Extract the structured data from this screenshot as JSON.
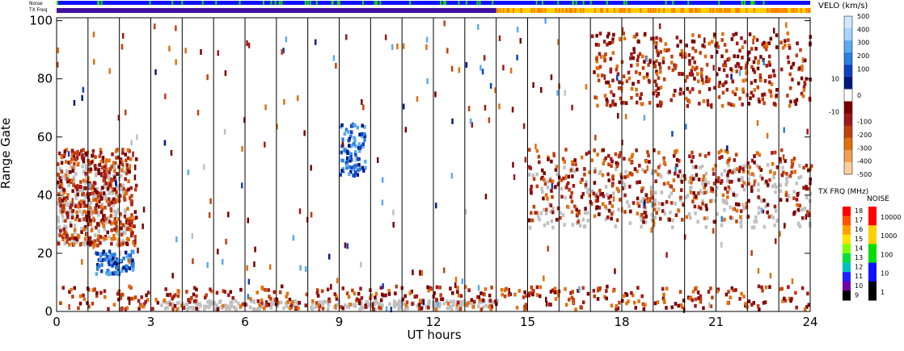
{
  "chart_data": {
    "type": "heatmap",
    "xlabel": "UT hours",
    "ylabel": "Range Gate",
    "xlim": [
      0,
      24
    ],
    "ylim": [
      0,
      101
    ],
    "xticks": [
      "0",
      "3",
      "6",
      "9",
      "12",
      "15",
      "18",
      "21",
      "24"
    ],
    "xtick_values": [
      0,
      3,
      6,
      9,
      12,
      15,
      18,
      21,
      24
    ],
    "yticks": [
      "0",
      "20",
      "40",
      "60",
      "80",
      "100"
    ],
    "ytick_values": [
      0,
      20,
      40,
      60,
      80,
      100
    ],
    "vertical_hour_lines": [
      1,
      2,
      3,
      4,
      5,
      6,
      7,
      8,
      9,
      10,
      11,
      12,
      13,
      14,
      15,
      16,
      17,
      18,
      19,
      20,
      21,
      22,
      23
    ],
    "status_bars": {
      "noise_label": "Noise",
      "txfreq_label": "TX Freq",
      "txfreq_change_hour": 14
    },
    "regions": [
      {
        "kind": "ground-scatter",
        "t0": 15.0,
        "t1": 24.0,
        "g0": 28,
        "g1": 50
      },
      {
        "kind": "ground-scatter",
        "t0": 0.0,
        "t1": 2.2,
        "g0": 22,
        "g1": 50
      },
      {
        "kind": "ground-scatter",
        "t0": 3.3,
        "t1": 14.0,
        "g0": 0,
        "g1": 3
      },
      {
        "kind": "negative-velocity",
        "t0": 0.0,
        "t1": 24.0,
        "g0": 0,
        "g1": 8
      },
      {
        "kind": "negative-velocity",
        "t0": 0.0,
        "t1": 2.5,
        "g0": 22,
        "g1": 55
      },
      {
        "kind": "positive-velocity",
        "t0": 1.2,
        "t1": 2.4,
        "g0": 12,
        "g1": 20
      },
      {
        "kind": "positive-velocity",
        "t0": 9.0,
        "t1": 9.8,
        "g0": 46,
        "g1": 64
      },
      {
        "kind": "negative-velocity",
        "t0": 15.0,
        "t1": 24.0,
        "g0": 30,
        "g1": 55
      },
      {
        "kind": "negative-velocity",
        "t0": 17.0,
        "t1": 24.0,
        "g0": 70,
        "g1": 95
      }
    ]
  },
  "colorbars": {
    "velocity": {
      "title": "VELO (km/s)",
      "labels": [
        "500",
        "400",
        "300",
        "200",
        "100",
        "10",
        "0",
        "-10",
        "-100",
        "-200",
        "-300",
        "-400",
        "-500"
      ],
      "colors": [
        "#d0e8ff",
        "#a8d4ff",
        "#5aaaf0",
        "#2a7fe0",
        "#1040c0",
        "#001a80",
        "#ffffff",
        "#7a0000",
        "#a01818",
        "#c04010",
        "#e07010",
        "#f0a050",
        "#f8d0a0"
      ]
    },
    "txfreq": {
      "title": "TX FRQ (MHz)",
      "labels": [
        "18",
        "17",
        "16",
        "15",
        "14",
        "13",
        "12",
        "11",
        "10",
        "9"
      ],
      "colors": [
        "#ff0000",
        "#ff5000",
        "#ffa000",
        "#ffe000",
        "#80ff00",
        "#00e040",
        "#00c0c0",
        "#2020ff",
        "#7000a0",
        "#000000"
      ]
    },
    "noise": {
      "title": "NOISE",
      "labels": [
        "10000",
        "1000",
        "100",
        "10",
        "1"
      ],
      "colors": [
        "#ff0000",
        "#ffd000",
        "#00e000",
        "#1010ff",
        "#000000"
      ]
    }
  }
}
